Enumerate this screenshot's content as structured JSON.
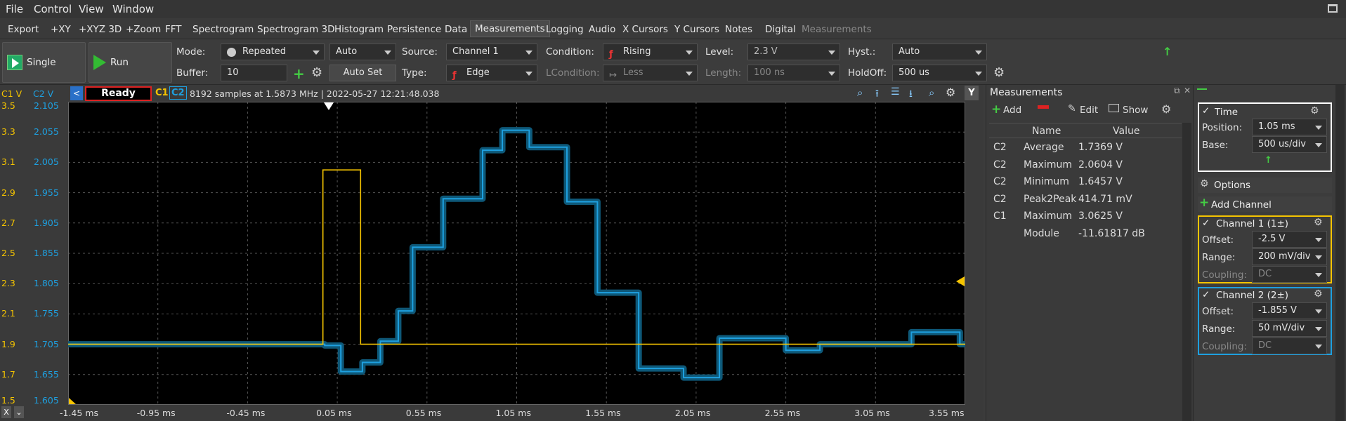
{
  "menu": [
    "File",
    "Control",
    "View",
    "Window"
  ],
  "toolbar": [
    "Export",
    "+XY",
    "+XYZ 3D",
    "+Zoom",
    "FFT",
    "Spectrogram",
    "Spectrogram 3D",
    "Histogram",
    "Persistence",
    "Data",
    "Measurements",
    "Logging",
    "Audio",
    "X Cursors",
    "Y Cursors",
    "Notes",
    "Digital",
    "Measurements"
  ],
  "controls": {
    "single": "Single",
    "run": "Run",
    "mode_label": "Mode:",
    "mode": "Repeated",
    "auto": "Auto",
    "buffer_label": "Buffer:",
    "buffer": "10",
    "autoset": "Auto Set",
    "source_label": "Source:",
    "source": "Channel 1",
    "type_label": "Type:",
    "type": "Edge",
    "condition_label": "Condition:",
    "condition": "Rising",
    "lcondition_label": "LCondition:",
    "lcondition": "Less",
    "level_label": "Level:",
    "level": "2.3 V",
    "length_label": "Length:",
    "length": "100 ns",
    "hyst_label": "Hyst.:",
    "hyst": "Auto",
    "holdoff_label": "HoldOff:",
    "holdoff": "500 us"
  },
  "status": {
    "c1v": "C1 V",
    "c2v": "C2 V",
    "state": "Ready",
    "c1": "C1",
    "c2": "C2",
    "info": "8192 samples at 1.5873 MHz | 2022-05-27 12:21:48.038"
  },
  "axis": {
    "c1_ticks": [
      "3.5",
      "3.3",
      "3.1",
      "2.9",
      "2.7",
      "2.5",
      "2.3",
      "2.1",
      "1.9",
      "1.7",
      "1.5"
    ],
    "c2_ticks": [
      "2.105",
      "2.055",
      "2.005",
      "1.955",
      "1.905",
      "1.855",
      "1.805",
      "1.755",
      "1.705",
      "1.655",
      "1.605"
    ],
    "time_ticks": [
      "-1.45 ms",
      "-0.95 ms",
      "-0.45 ms",
      "0.05 ms",
      "0.55 ms",
      "1.05 ms",
      "1.55 ms",
      "2.05 ms",
      "2.55 ms",
      "3.05 ms",
      "3.55 ms"
    ]
  },
  "measurements": {
    "title": "Measurements",
    "add": "Add",
    "edit": "Edit",
    "show": "Show",
    "headers": [
      "Name",
      "Value"
    ],
    "rows": [
      {
        "ch": "C2",
        "name": "Average",
        "value": "1.7369 V"
      },
      {
        "ch": "C2",
        "name": "Maximum",
        "value": "2.0604 V"
      },
      {
        "ch": "C2",
        "name": "Minimum",
        "value": "1.6457 V"
      },
      {
        "ch": "C2",
        "name": "Peak2Peak",
        "value": "414.71 mV"
      },
      {
        "ch": "C1",
        "name": "Maximum",
        "value": "3.0625 V"
      },
      {
        "ch": "",
        "name": "Module",
        "value": "-11.61817 dB"
      }
    ]
  },
  "time_panel": {
    "title": "Time",
    "position_label": "Position:",
    "position": "1.05 ms",
    "base_label": "Base:",
    "base": "500 us/div"
  },
  "options": "Options",
  "add_channel": "Add Channel",
  "ch1": {
    "title": "Channel 1 (1±)",
    "offset_label": "Offset:",
    "offset": "-2.5 V",
    "range_label": "Range:",
    "range": "200 mV/div",
    "coupling_label": "Coupling:",
    "coupling": "DC",
    "color": "#f5c400"
  },
  "ch2": {
    "title": "Channel 2 (2±)",
    "offset_label": "Offset:",
    "offset": "-1.855 V",
    "range_label": "Range:",
    "range": "50 mV/div",
    "coupling_label": "Coupling:",
    "coupling": "DC",
    "color": "#1ea0e0"
  }
}
